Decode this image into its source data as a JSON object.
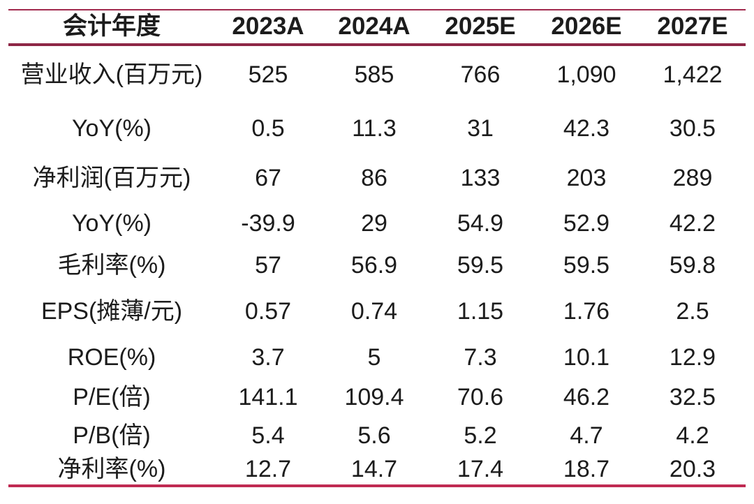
{
  "chart_data": {
    "type": "table",
    "header_label": "会计年度",
    "columns": [
      "2023A",
      "2024A",
      "2025E",
      "2026E",
      "2027E"
    ],
    "rows": [
      {
        "label": "营业收入(百万元)",
        "values": [
          "525",
          "585",
          "766",
          "1,090",
          "1,422"
        ]
      },
      {
        "label": "YoY(%)",
        "values": [
          "0.5",
          "11.3",
          "31",
          "42.3",
          "30.5"
        ]
      },
      {
        "label": "净利润(百万元)",
        "values": [
          "67",
          "86",
          "133",
          "203",
          "289"
        ]
      },
      {
        "label": "YoY(%)",
        "values": [
          "-39.9",
          "29",
          "54.9",
          "52.9",
          "42.2"
        ]
      },
      {
        "label": "毛利率(%)",
        "values": [
          "57",
          "56.9",
          "59.5",
          "59.5",
          "59.8"
        ]
      },
      {
        "label": "EPS(摊薄/元)",
        "values": [
          "0.57",
          "0.74",
          "1.15",
          "1.76",
          "2.5"
        ]
      },
      {
        "label": "ROE(%)",
        "values": [
          "3.7",
          "5",
          "7.3",
          "10.1",
          "12.9"
        ]
      },
      {
        "label": "P/E(倍)",
        "values": [
          "141.1",
          "109.4",
          "70.6",
          "46.2",
          "32.5"
        ]
      },
      {
        "label": "P/B(倍)",
        "values": [
          "5.4",
          "5.6",
          "5.2",
          "4.7",
          "4.2"
        ]
      },
      {
        "label": "净利率(%)",
        "values": [
          "12.7",
          "14.7",
          "17.4",
          "18.7",
          "20.3"
        ]
      }
    ]
  },
  "colors": {
    "top_rule": "#A12A4E",
    "header_rule": "#8E2746",
    "bottom_rule": "#C02A52",
    "text": "#1C1C1C",
    "background": "#FFFFFF"
  }
}
